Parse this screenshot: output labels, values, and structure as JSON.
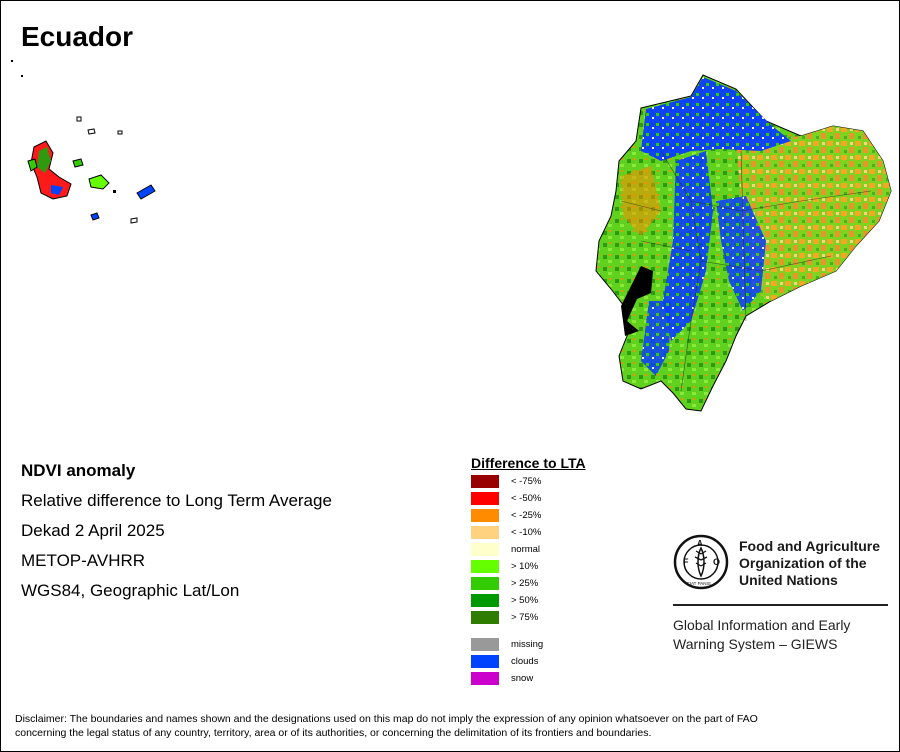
{
  "map": {
    "title": "Ecuador",
    "info_lines": [
      "NDVI anomaly",
      "Relative difference to Long Term Average",
      "Dekad 2 April 2025",
      "METOP-AVHRR",
      "WGS84, Geographic Lat/Lon"
    ]
  },
  "legend": {
    "title": "Difference to LTA",
    "items": [
      {
        "label": "< -75%",
        "color": "#990000"
      },
      {
        "label": "< -50%",
        "color": "#ff0000"
      },
      {
        "label": "< -25%",
        "color": "#ff8c00"
      },
      {
        "label": "< -10%",
        "color": "#ffd27f"
      },
      {
        "label": "normal",
        "color": "#ffffcc"
      },
      {
        "label": "> 10%",
        "color": "#66ff00"
      },
      {
        "label": "> 25%",
        "color": "#33cc00"
      },
      {
        "label": "> 50%",
        "color": "#009900"
      },
      {
        "label": "> 75%",
        "color": "#2e7d00"
      }
    ],
    "extra_items": [
      {
        "label": "missing",
        "color": "#999999"
      },
      {
        "label": "clouds",
        "color": "#0044ff"
      },
      {
        "label": "snow",
        "color": "#cc00cc"
      }
    ]
  },
  "organization": {
    "name_line1": "Food and Agriculture",
    "name_line2": "Organization of the",
    "name_line3": "United Nations",
    "logo_letters": "FAO",
    "logo_motto": "FIAT PANIS",
    "system_line1": "Global Information and Early",
    "system_line2": "Warning System – GIEWS"
  },
  "disclaimer": {
    "line1": "Disclaimer: The boundaries and names shown and the designations used on this map do not imply the expression of any opinion whatsoever on the part of FAO",
    "line2": "concerning the legal status of any country, territory, area or of its authorities, or concerning the delimitation of its frontiers and boundaries."
  }
}
